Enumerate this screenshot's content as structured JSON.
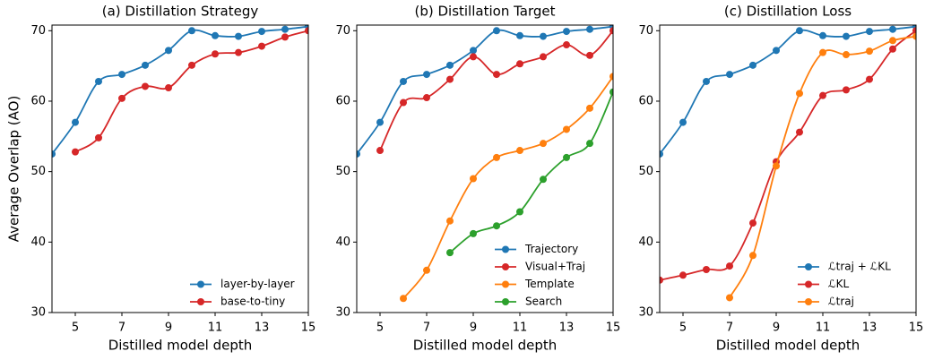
{
  "chart_data": [
    {
      "type": "line",
      "title": "(a) Distillation Strategy",
      "xlabel": "Distilled model depth",
      "ylabel": "Average Overlap (AO)",
      "xlim": [
        4,
        15
      ],
      "ylim": [
        30,
        70.8
      ],
      "xticks": [
        5,
        7,
        9,
        11,
        13,
        15
      ],
      "yticks": [
        30,
        40,
        50,
        60,
        70
      ],
      "legend": "lower right",
      "x": [
        4,
        5,
        6,
        7,
        8,
        9,
        10,
        11,
        12,
        13,
        14,
        15
      ],
      "series": [
        {
          "name": "layer-by-layer",
          "color": "#1f77b4",
          "values": [
            52.5,
            57,
            62.8,
            63.8,
            65.1,
            67.2,
            70,
            69.3,
            69.2,
            69.9,
            70.2,
            70.6
          ]
        },
        {
          "name": "base-to-tiny",
          "color": "#d62728",
          "values": [
            null,
            52.8,
            54.8,
            60.4,
            62.1,
            61.9,
            65.1,
            66.7,
            66.9,
            67.8,
            69.1,
            70
          ]
        }
      ]
    },
    {
      "type": "line",
      "title": "(b) Distillation Target",
      "xlabel": "Distilled model depth",
      "xlim": [
        4,
        15
      ],
      "ylim": [
        30,
        70.8
      ],
      "xticks": [
        5,
        7,
        9,
        11,
        13,
        15
      ],
      "yticks": [
        30,
        40,
        50,
        60,
        70
      ],
      "legend": "lower right",
      "x": [
        4,
        5,
        6,
        7,
        8,
        9,
        10,
        11,
        12,
        13,
        14,
        15
      ],
      "series": [
        {
          "name": "Trajectory",
          "color": "#1f77b4",
          "values": [
            52.5,
            57,
            62.8,
            63.8,
            65.1,
            67.2,
            70,
            69.3,
            69.2,
            69.9,
            70.2,
            70.6
          ]
        },
        {
          "name": "Visual+Traj",
          "color": "#d62728",
          "values": [
            null,
            53,
            59.8,
            60.5,
            63.1,
            66.3,
            63.8,
            65.3,
            66.3,
            68,
            66.5,
            70
          ]
        },
        {
          "name": "Template",
          "color": "#ff7f0e",
          "values": [
            null,
            null,
            32,
            36,
            43,
            49,
            52,
            53,
            54,
            56,
            59,
            63.5
          ]
        },
        {
          "name": "Search",
          "color": "#2ca02c",
          "values": [
            null,
            null,
            null,
            null,
            38.5,
            41.2,
            42.3,
            44.3,
            48.9,
            52,
            54,
            61.3
          ]
        }
      ]
    },
    {
      "type": "line",
      "title": "(c) Distillation Loss",
      "xlabel": "Distilled model depth",
      "xlim": [
        4,
        15
      ],
      "ylim": [
        30,
        70.8
      ],
      "xticks": [
        5,
        7,
        9,
        11,
        13,
        15
      ],
      "yticks": [
        30,
        40,
        50,
        60,
        70
      ],
      "legend": "lower right",
      "x": [
        4,
        5,
        6,
        7,
        8,
        9,
        10,
        11,
        12,
        13,
        14,
        15
      ],
      "series": [
        {
          "name": "ℒtraj + ℒKL",
          "color": "#1f77b4",
          "values": [
            52.5,
            57,
            62.8,
            63.8,
            65.1,
            67.2,
            70,
            69.3,
            69.2,
            69.9,
            70.2,
            70.6
          ]
        },
        {
          "name": "ℒKL",
          "color": "#d62728",
          "values": [
            34.6,
            35.3,
            36.1,
            36.6,
            42.7,
            51.4,
            55.6,
            60.8,
            61.6,
            63.1,
            67.4,
            70
          ]
        },
        {
          "name": "ℒtraj",
          "color": "#ff7f0e",
          "values": [
            null,
            null,
            null,
            32.1,
            38.1,
            50.8,
            61.1,
            66.9,
            66.6,
            67.1,
            68.6,
            69.2
          ]
        }
      ]
    }
  ]
}
